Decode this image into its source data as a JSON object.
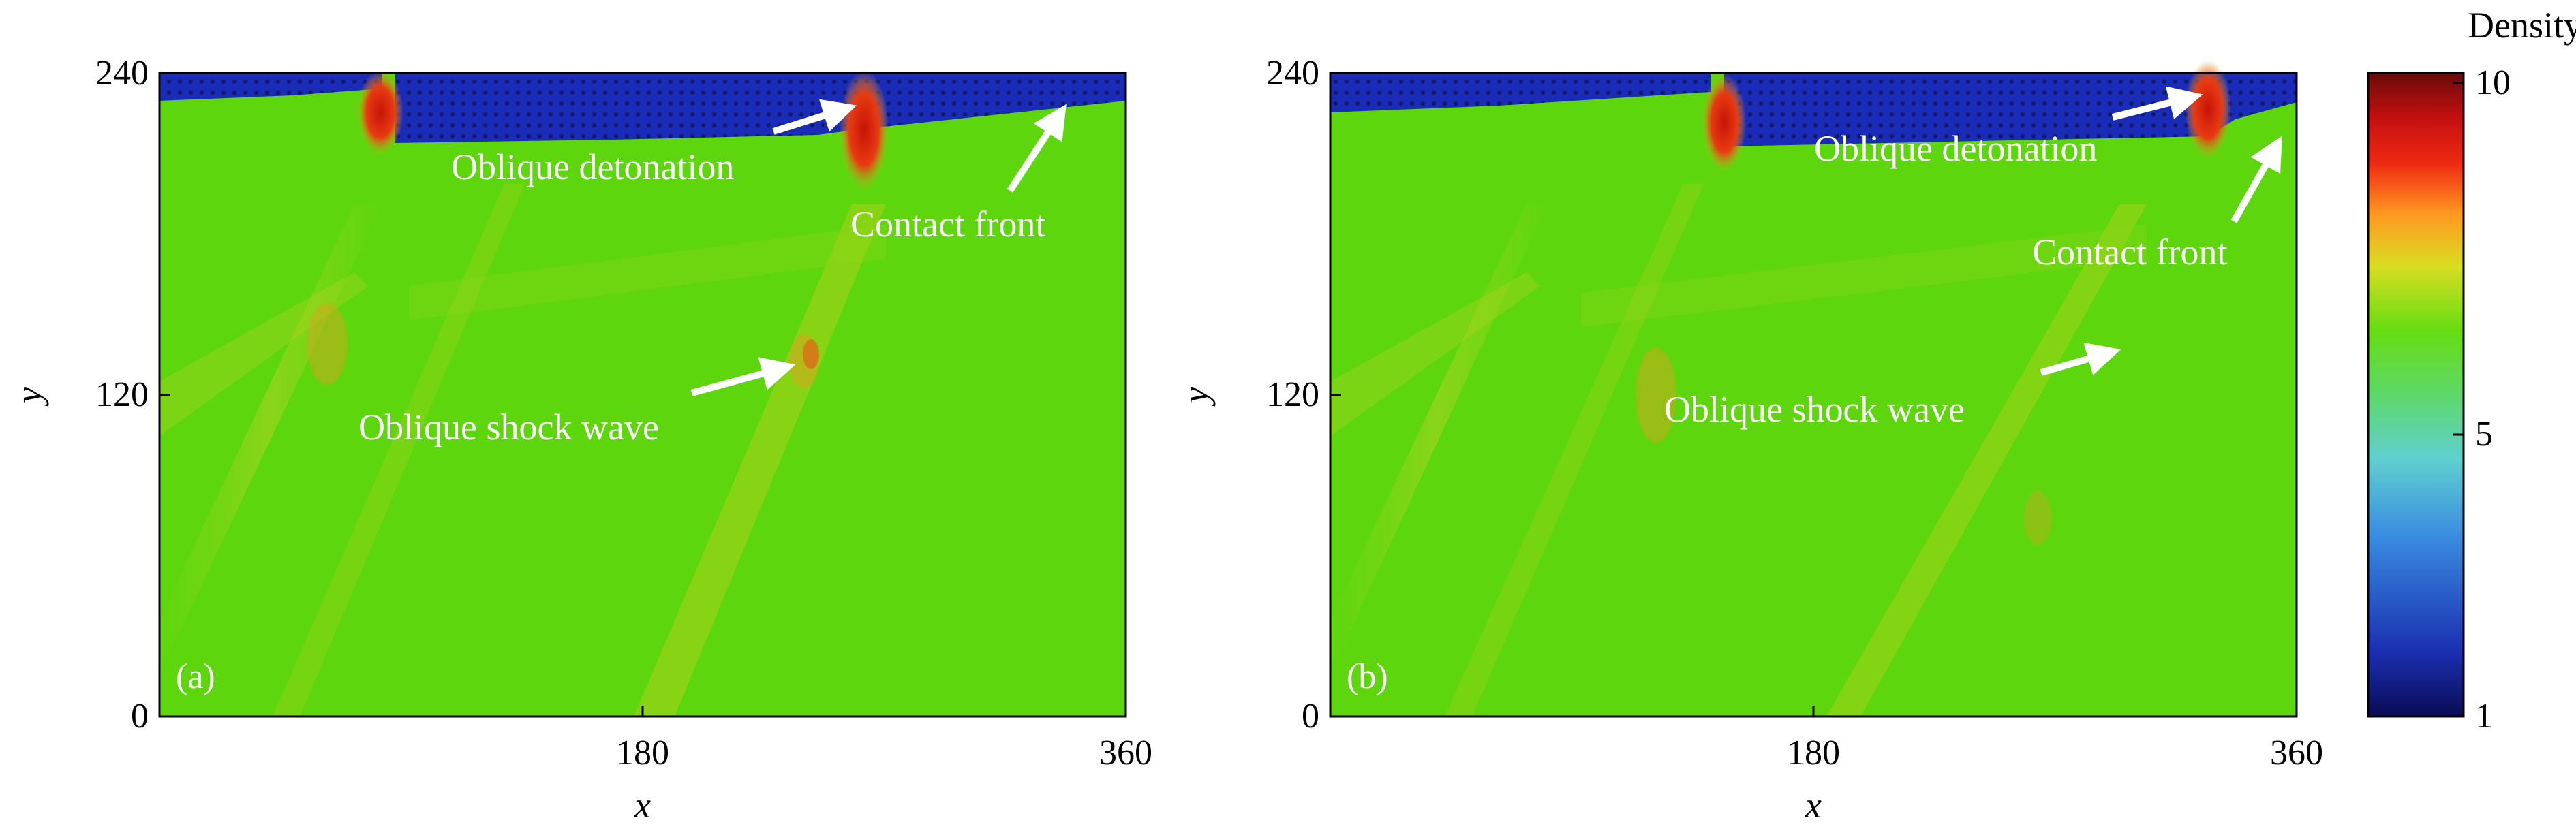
{
  "figure": {
    "colorbar": {
      "title": "Density",
      "ticks": [
        "10",
        "5",
        "1"
      ],
      "tick_values": [
        10,
        5,
        1
      ],
      "range": [
        1,
        10
      ],
      "colormap": [
        "#0a0a55",
        "#1a2fb0",
        "#3a8be0",
        "#5fd0d0",
        "#5ed86a",
        "#66dd11",
        "#d8dd22",
        "#ff9922",
        "#ee2a12",
        "#c41010",
        "#6a0a0a"
      ]
    },
    "panels": [
      {
        "id": "a",
        "panel_label": "(a)",
        "xlabel": "x",
        "ylabel": "y",
        "xticks": [
          "180",
          "360"
        ],
        "yticks": [
          "0",
          "120",
          "240"
        ],
        "xrange": [
          0,
          360
        ],
        "yrange": [
          0,
          240
        ],
        "annotations": {
          "detonation": "Oblique detonation",
          "contact": "Contact front",
          "shock": "Oblique shock wave"
        }
      },
      {
        "id": "b",
        "panel_label": "(b)",
        "xlabel": "x",
        "ylabel": "y",
        "xticks": [
          "180",
          "360"
        ],
        "yticks": [
          "0",
          "120",
          "240"
        ],
        "xrange": [
          0,
          360
        ],
        "yrange": [
          0,
          240
        ],
        "annotations": {
          "detonation": "Oblique detonation",
          "contact": "Contact front",
          "shock": "Oblique shock wave"
        }
      }
    ],
    "colors": {
      "field": "#5ed60e",
      "low_density": "#1a2bb8",
      "front": "#d42a10",
      "arrow": "#ffffff"
    }
  }
}
